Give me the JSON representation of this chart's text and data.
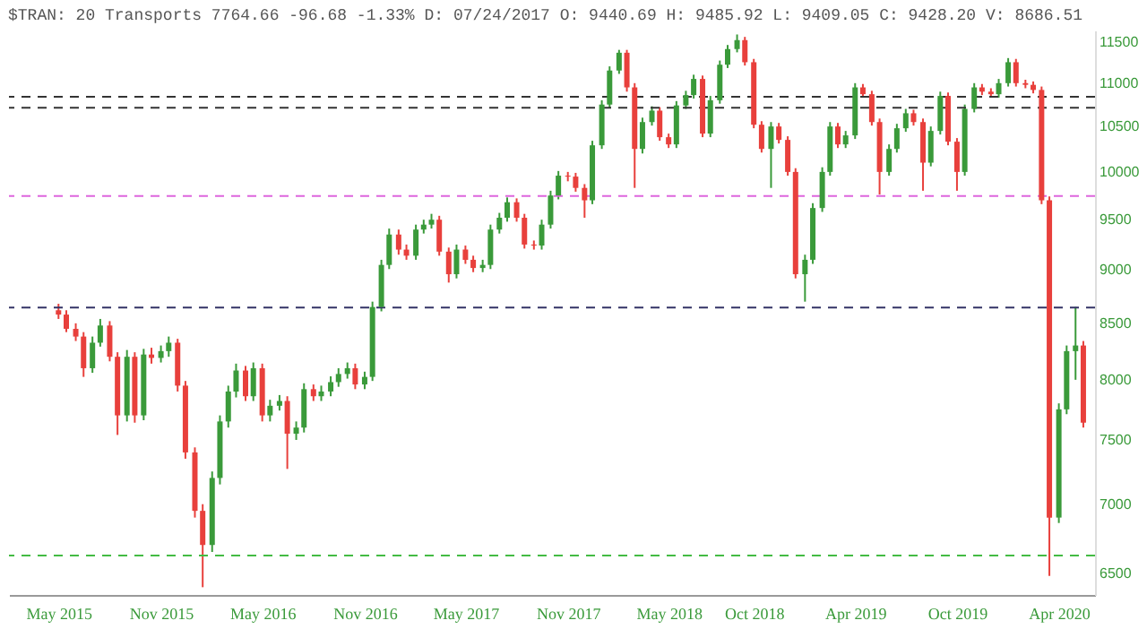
{
  "chart_data": {
    "type": "candlestick",
    "title": "$TRAN: 20 Transports 7764.66 -96.68 -1.33% D: 07/24/2017 O: 9440.69 H: 9485.92 L: 9409.05 C: 9428.20 V: 8686.51",
    "x": [
      "2015-05-01",
      "2015-05-15",
      "2015-06-01",
      "2015-06-15",
      "2015-07-01",
      "2015-07-15",
      "2015-08-01",
      "2015-08-15",
      "2015-09-01",
      "2015-09-15",
      "2015-10-01",
      "2015-10-15",
      "2015-11-01",
      "2015-11-15",
      "2015-12-01",
      "2015-12-15",
      "2016-01-01",
      "2016-01-15",
      "2016-02-01",
      "2016-02-15",
      "2016-03-01",
      "2016-03-15",
      "2016-04-01",
      "2016-04-15",
      "2016-05-01",
      "2016-05-15",
      "2016-06-01",
      "2016-06-15",
      "2016-07-01",
      "2016-07-15",
      "2016-08-01",
      "2016-08-15",
      "2016-09-01",
      "2016-09-15",
      "2016-10-01",
      "2016-10-15",
      "2016-11-01",
      "2016-11-15",
      "2016-12-01",
      "2016-12-15",
      "2017-01-01",
      "2017-01-15",
      "2017-02-01",
      "2017-02-15",
      "2017-03-01",
      "2017-03-15",
      "2017-04-01",
      "2017-04-15",
      "2017-05-01",
      "2017-05-15",
      "2017-06-01",
      "2017-06-15",
      "2017-07-01",
      "2017-07-15",
      "2017-08-01",
      "2017-08-15",
      "2017-09-01",
      "2017-09-15",
      "2017-10-01",
      "2017-10-15",
      "2017-11-01",
      "2017-11-15",
      "2017-12-01",
      "2017-12-15",
      "2018-01-01",
      "2018-01-15",
      "2018-02-01",
      "2018-02-15",
      "2018-03-01",
      "2018-03-15",
      "2018-04-01",
      "2018-04-15",
      "2018-05-01",
      "2018-05-15",
      "2018-06-01",
      "2018-06-15",
      "2018-07-01",
      "2018-07-15",
      "2018-08-01",
      "2018-08-15",
      "2018-09-01",
      "2018-09-15",
      "2018-10-01",
      "2018-10-15",
      "2018-11-01",
      "2018-11-15",
      "2018-12-01",
      "2018-12-15",
      "2019-01-01",
      "2019-01-15",
      "2019-02-01",
      "2019-02-15",
      "2019-03-01",
      "2019-03-15",
      "2019-04-01",
      "2019-04-15",
      "2019-05-01",
      "2019-05-15",
      "2019-06-01",
      "2019-06-15",
      "2019-07-01",
      "2019-07-15",
      "2019-08-01",
      "2019-08-15",
      "2019-09-01",
      "2019-09-15",
      "2019-10-01",
      "2019-10-15",
      "2019-11-01",
      "2019-11-15",
      "2019-12-01",
      "2019-12-15",
      "2020-01-01",
      "2020-01-15",
      "2020-02-01",
      "2020-02-15",
      "2020-03-01",
      "2020-03-15",
      "2020-04-01",
      "2020-04-15",
      "2020-05-01",
      "2020-05-15"
    ],
    "ohlc": [
      [
        8620,
        8680,
        8540,
        8580
      ],
      [
        8580,
        8620,
        8420,
        8450
      ],
      [
        8450,
        8500,
        8340,
        8380
      ],
      [
        8380,
        8420,
        8025,
        8100
      ],
      [
        8100,
        8380,
        8060,
        8325
      ],
      [
        8325,
        8540,
        8290,
        8480
      ],
      [
        8480,
        8520,
        8160,
        8200
      ],
      [
        8200,
        8240,
        7540,
        7700
      ],
      [
        7700,
        8260,
        7650,
        8200
      ],
      [
        8200,
        8240,
        7640,
        7700
      ],
      [
        7700,
        8270,
        7660,
        8220
      ],
      [
        8220,
        8280,
        8140,
        8190
      ],
      [
        8190,
        8300,
        8150,
        8250
      ],
      [
        8250,
        8380,
        8200,
        8325
      ],
      [
        8325,
        8360,
        7900,
        7950
      ],
      [
        7950,
        7990,
        7350,
        7400
      ],
      [
        7400,
        7440,
        6900,
        6950
      ],
      [
        6950,
        7000,
        6403,
        6700
      ],
      [
        6700,
        7250,
        6650,
        7200
      ],
      [
        7200,
        7700,
        7150,
        7650
      ],
      [
        7650,
        7950,
        7600,
        7900
      ],
      [
        7900,
        8140,
        7850,
        8080
      ],
      [
        8080,
        8120,
        7820,
        7860
      ],
      [
        7860,
        8150,
        7820,
        8100
      ],
      [
        8100,
        8140,
        7650,
        7700
      ],
      [
        7700,
        7830,
        7650,
        7780
      ],
      [
        7780,
        7870,
        7740,
        7820
      ],
      [
        7820,
        7860,
        7270,
        7550
      ],
      [
        7550,
        7650,
        7500,
        7600
      ],
      [
        7600,
        7970,
        7560,
        7920
      ],
      [
        7920,
        7960,
        7820,
        7860
      ],
      [
        7860,
        7950,
        7820,
        7900
      ],
      [
        7900,
        8030,
        7860,
        7980
      ],
      [
        7980,
        8100,
        7940,
        8050
      ],
      [
        8050,
        8150,
        8010,
        8100
      ],
      [
        8100,
        8140,
        7920,
        7960
      ],
      [
        7960,
        8070,
        7920,
        8025
      ],
      [
        8025,
        8700,
        7990,
        8650
      ],
      [
        8650,
        9100,
        8610,
        9050
      ],
      [
        9050,
        9410,
        9010,
        9350
      ],
      [
        9350,
        9400,
        9150,
        9200
      ],
      [
        9200,
        9250,
        9100,
        9140
      ],
      [
        9140,
        9450,
        9100,
        9400
      ],
      [
        9400,
        9500,
        9360,
        9450
      ],
      [
        9450,
        9560,
        9410,
        9500
      ],
      [
        9500,
        9540,
        9140,
        9180
      ],
      [
        9180,
        9220,
        8880,
        8960
      ],
      [
        8960,
        9250,
        8920,
        9200
      ],
      [
        9200,
        9240,
        9060,
        9100
      ],
      [
        9100,
        9140,
        8980,
        9020
      ],
      [
        9020,
        9100,
        8980,
        9050
      ],
      [
        9050,
        9450,
        9010,
        9400
      ],
      [
        9400,
        9570,
        9360,
        9520
      ],
      [
        9520,
        9730,
        9480,
        9680
      ],
      [
        9680,
        9720,
        9480,
        9520
      ],
      [
        9520,
        9560,
        9210,
        9250
      ],
      [
        9250,
        9290,
        9200,
        9240
      ],
      [
        9240,
        9500,
        9200,
        9450
      ],
      [
        9450,
        9800,
        9410,
        9750
      ],
      [
        9750,
        10010,
        9710,
        9960
      ],
      [
        9960,
        10000,
        9900,
        9950
      ],
      [
        9950,
        9990,
        9790,
        9830
      ],
      [
        9830,
        9870,
        9520,
        9700
      ],
      [
        9700,
        10340,
        9660,
        10290
      ],
      [
        10290,
        10800,
        10250,
        10750
      ],
      [
        10750,
        11200,
        10710,
        11150
      ],
      [
        11150,
        11400,
        11110,
        11365
      ],
      [
        11365,
        11400,
        10900,
        10950
      ],
      [
        10950,
        11000,
        9830,
        10250
      ],
      [
        10250,
        10600,
        10200,
        10550
      ],
      [
        10550,
        10730,
        10510,
        10680
      ],
      [
        10680,
        10720,
        10340,
        10380
      ],
      [
        10380,
        10420,
        10260,
        10300
      ],
      [
        10300,
        10790,
        10260,
        10740
      ],
      [
        10740,
        10910,
        10700,
        10860
      ],
      [
        10860,
        11100,
        10820,
        11050
      ],
      [
        11050,
        11090,
        10380,
        10420
      ],
      [
        10420,
        10850,
        10380,
        10800
      ],
      [
        10800,
        11270,
        10760,
        11220
      ],
      [
        11220,
        11460,
        11180,
        11410
      ],
      [
        11410,
        11590,
        11370,
        11520
      ],
      [
        11520,
        11560,
        11210,
        11250
      ],
      [
        11250,
        11290,
        10480,
        10520
      ],
      [
        10520,
        10560,
        10210,
        10250
      ],
      [
        10250,
        10550,
        9830,
        10500
      ],
      [
        10500,
        10540,
        10310,
        10350
      ],
      [
        10350,
        10390,
        9960,
        10000
      ],
      [
        10000,
        10040,
        8920,
        8960
      ],
      [
        8960,
        9150,
        8700,
        9100
      ],
      [
        9100,
        9670,
        9060,
        9620
      ],
      [
        9620,
        10050,
        9580,
        10000
      ],
      [
        10000,
        10550,
        9960,
        10500
      ],
      [
        10500,
        10540,
        10260,
        10300
      ],
      [
        10300,
        10450,
        10260,
        10400
      ],
      [
        10400,
        11000,
        10360,
        10950
      ],
      [
        10950,
        10990,
        10830,
        10870
      ],
      [
        10870,
        10910,
        10510,
        10550
      ],
      [
        10550,
        10590,
        9760,
        10000
      ],
      [
        10000,
        10300,
        9960,
        10250
      ],
      [
        10250,
        10530,
        10210,
        10480
      ],
      [
        10480,
        10700,
        10440,
        10650
      ],
      [
        10650,
        10690,
        10510,
        10550
      ],
      [
        10550,
        10590,
        9800,
        10100
      ],
      [
        10100,
        10500,
        10060,
        10450
      ],
      [
        10450,
        10900,
        10410,
        10850
      ],
      [
        10850,
        10890,
        10290,
        10330
      ],
      [
        10330,
        10370,
        9800,
        10000
      ],
      [
        10000,
        10750,
        9960,
        10700
      ],
      [
        10700,
        11000,
        10660,
        10950
      ],
      [
        10950,
        10990,
        10860,
        10900
      ],
      [
        10900,
        10940,
        10830,
        10870
      ],
      [
        10870,
        11050,
        10830,
        11000
      ],
      [
        11000,
        11300,
        10960,
        11250
      ],
      [
        11250,
        11290,
        10960,
        11000
      ],
      [
        11000,
        11040,
        10940,
        10980
      ],
      [
        10980,
        11020,
        10880,
        10920
      ],
      [
        10920,
        10960,
        9660,
        9700
      ],
      [
        9700,
        9740,
        6481,
        6900
      ],
      [
        6900,
        7800,
        6860,
        7750
      ],
      [
        7750,
        8300,
        7710,
        8250
      ],
      [
        8250,
        8650,
        8000,
        8300
      ],
      [
        8300,
        8340,
        7600,
        7640
      ]
    ],
    "colors": [
      "#e8403c",
      "#e8403c",
      "#e8403c",
      "#e8403c",
      "#3a9a3a",
      "#3a9a3a",
      "#e8403c",
      "#e8403c",
      "#3a9a3a",
      "#e8403c",
      "#3a9a3a",
      "#e8403c",
      "#3a9a3a",
      "#3a9a3a",
      "#e8403c",
      "#e8403c",
      "#e8403c",
      "#e8403c",
      "#3a9a3a",
      "#3a9a3a",
      "#3a9a3a",
      "#3a9a3a",
      "#e8403c",
      "#3a9a3a",
      "#e8403c",
      "#3a9a3a",
      "#3a9a3a",
      "#e8403c",
      "#3a9a3a",
      "#3a9a3a",
      "#e8403c",
      "#3a9a3a",
      "#3a9a3a",
      "#3a9a3a",
      "#3a9a3a",
      "#e8403c",
      "#3a9a3a",
      "#3a9a3a",
      "#3a9a3a",
      "#3a9a3a",
      "#e8403c",
      "#e8403c",
      "#3a9a3a",
      "#3a9a3a",
      "#3a9a3a",
      "#e8403c",
      "#e8403c",
      "#3a9a3a",
      "#e8403c",
      "#e8403c",
      "#3a9a3a",
      "#3a9a3a",
      "#3a9a3a",
      "#3a9a3a",
      "#e8403c",
      "#e8403c",
      "#e8403c",
      "#3a9a3a",
      "#3a9a3a",
      "#3a9a3a",
      "#e8403c",
      "#e8403c",
      "#e8403c",
      "#3a9a3a",
      "#3a9a3a",
      "#3a9a3a",
      "#3a9a3a",
      "#e8403c",
      "#e8403c",
      "#3a9a3a",
      "#3a9a3a",
      "#e8403c",
      "#e8403c",
      "#3a9a3a",
      "#3a9a3a",
      "#3a9a3a",
      "#e8403c",
      "#3a9a3a",
      "#3a9a3a",
      "#3a9a3a",
      "#3a9a3a",
      "#e8403c",
      "#e8403c",
      "#e8403c",
      "#3a9a3a",
      "#e8403c",
      "#e8403c",
      "#e8403c",
      "#3a9a3a",
      "#3a9a3a",
      "#3a9a3a",
      "#3a9a3a",
      "#e8403c",
      "#3a9a3a",
      "#3a9a3a",
      "#e8403c",
      "#e8403c",
      "#e8403c",
      "#3a9a3a",
      "#3a9a3a",
      "#3a9a3a",
      "#e8403c",
      "#e8403c",
      "#3a9a3a",
      "#3a9a3a",
      "#e8403c",
      "#e8403c",
      "#3a9a3a",
      "#3a9a3a",
      "#e8403c",
      "#e8403c",
      "#3a9a3a",
      "#3a9a3a",
      "#e8403c",
      "#e8403c",
      "#e8403c",
      "#e8403c",
      "#e8403c",
      "#3a9a3a",
      "#3a9a3a",
      "#3a9a3a",
      "#e8403c"
    ],
    "xlim": [
      "2015-02-01",
      "2020-06-05"
    ],
    "xticks": [
      {
        "value": "2015-05-01",
        "label": "May 2015"
      },
      {
        "value": "2015-11-01",
        "label": "Nov 2015"
      },
      {
        "value": "2016-05-01",
        "label": "May 2016"
      },
      {
        "value": "2016-11-01",
        "label": "Nov 2016"
      },
      {
        "value": "2017-05-01",
        "label": "May 2017"
      },
      {
        "value": "2017-11-01",
        "label": "Nov 2017"
      },
      {
        "value": "2018-05-01",
        "label": "May 2018"
      },
      {
        "value": "2018-10-01",
        "label": "Oct 2018"
      },
      {
        "value": "2019-04-01",
        "label": "Apr 2019"
      },
      {
        "value": "2019-10-01",
        "label": "Oct 2019"
      },
      {
        "value": "2020-04-01",
        "label": "Apr 2020"
      }
    ],
    "ylim": [
      6350,
      11640
    ],
    "yticks": [
      6500,
      7000,
      7500,
      8000,
      8500,
      9000,
      9500,
      10000,
      10500,
      11000,
      11500
    ],
    "log": true,
    "grid": false,
    "ref_lines": [
      {
        "axis": "y",
        "value": 6625,
        "color": "#44bb44",
        "line_style": "dashed"
      },
      {
        "axis": "y",
        "value": 8644,
        "color": "#333366",
        "line_style": "dashed"
      },
      {
        "axis": "y",
        "value": 9746,
        "color": "#dd66dd",
        "line_style": "dashed"
      },
      {
        "axis": "y",
        "value": 10712,
        "color": "#333333",
        "line_style": "dashed"
      },
      {
        "axis": "y",
        "value": 10840,
        "color": "#333333",
        "line_style": "dashed"
      }
    ]
  }
}
